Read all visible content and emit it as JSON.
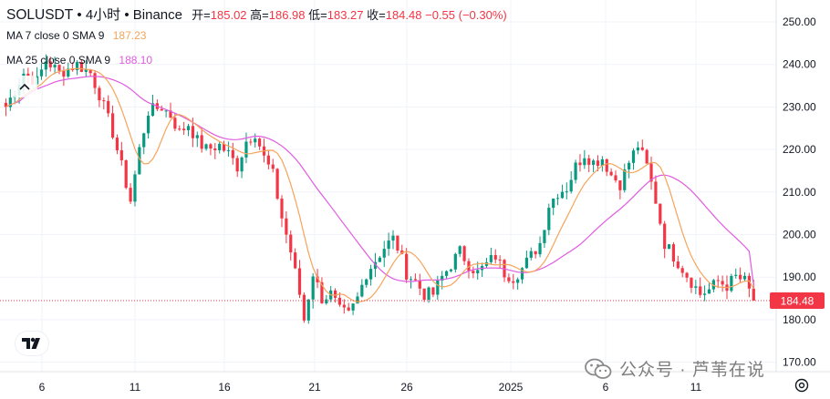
{
  "header": {
    "symbol": "SOLUSDT",
    "interval": "4小时",
    "exchange": "Binance",
    "dot": "•",
    "open_label": "开=",
    "open": "185.02",
    "high_label": "高=",
    "high": "186.98",
    "low_label": "低=",
    "low": "183.27",
    "close_label": "收=",
    "close": "184.48",
    "change": "−0.55 (−0.30%)"
  },
  "indicators": [
    {
      "label": "MA 7 close 0 SMA 9",
      "value": "187.23",
      "color": "#f5a45b"
    },
    {
      "label": "MA 25 close 0 SMA 9",
      "value": "188.10",
      "color": "#e05be0"
    }
  ],
  "price_badge": "184.48",
  "watermark": "公众号 · 芦苇在说",
  "colors": {
    "up": "#089981",
    "down": "#f23645",
    "grid": "#f0f3fa",
    "axis_text": "#131722",
    "badge": "#f23645"
  },
  "chart_data": {
    "type": "candlestick",
    "symbol": "SOLUSDT",
    "ylim": [
      170,
      255
    ],
    "y_ticks": [
      "250.00",
      "240.00",
      "230.00",
      "220.00",
      "210.00",
      "200.00",
      "190.00",
      "180.00",
      "170.00"
    ],
    "x_ticks": [
      "6",
      "11",
      "16",
      "21",
      "26",
      "2025",
      "6",
      "11"
    ],
    "last_price": 184.48,
    "grid": true,
    "close_path": [
      [
        0,
        230
      ],
      [
        4,
        238
      ],
      [
        7,
        236
      ],
      [
        9,
        241
      ],
      [
        12,
        238
      ],
      [
        16,
        240
      ],
      [
        19,
        238
      ],
      [
        21,
        233
      ],
      [
        24,
        224
      ],
      [
        26,
        216
      ],
      [
        28,
        208
      ],
      [
        30,
        220
      ],
      [
        32,
        229
      ],
      [
        35,
        230
      ],
      [
        37,
        228
      ],
      [
        39,
        224
      ],
      [
        41,
        226
      ],
      [
        43,
        222
      ],
      [
        45,
        220
      ],
      [
        48,
        221
      ],
      [
        50,
        219
      ],
      [
        52,
        216
      ],
      [
        54,
        222
      ],
      [
        56,
        224
      ],
      [
        58,
        218
      ],
      [
        60,
        214
      ],
      [
        62,
        204
      ],
      [
        64,
        196
      ],
      [
        66,
        186
      ],
      [
        67,
        180
      ],
      [
        69,
        191
      ],
      [
        71,
        185
      ],
      [
        73,
        186
      ],
      [
        75,
        182
      ],
      [
        77,
        181
      ],
      [
        79,
        185
      ],
      [
        81,
        191
      ],
      [
        83,
        194
      ],
      [
        85,
        197
      ],
      [
        87,
        199
      ],
      [
        88,
        197
      ],
      [
        90,
        191
      ],
      [
        92,
        189
      ],
      [
        94,
        186
      ],
      [
        96,
        186
      ],
      [
        98,
        190
      ],
      [
        100,
        193
      ],
      [
        102,
        196
      ],
      [
        104,
        193
      ],
      [
        106,
        191
      ],
      [
        108,
        193
      ],
      [
        110,
        195
      ],
      [
        112,
        191
      ],
      [
        114,
        190
      ],
      [
        116,
        192
      ],
      [
        118,
        195
      ],
      [
        120,
        198
      ],
      [
        122,
        207
      ],
      [
        124,
        210
      ],
      [
        126,
        211
      ],
      [
        128,
        216
      ],
      [
        130,
        219
      ],
      [
        132,
        217
      ],
      [
        134,
        218
      ],
      [
        136,
        214
      ],
      [
        138,
        212
      ],
      [
        140,
        217
      ],
      [
        142,
        221
      ],
      [
        144,
        216
      ],
      [
        146,
        208
      ],
      [
        148,
        198
      ],
      [
        150,
        195
      ],
      [
        152,
        192
      ],
      [
        154,
        189
      ],
      [
        156,
        186
      ],
      [
        158,
        187
      ],
      [
        160,
        189
      ],
      [
        162,
        188
      ],
      [
        164,
        190
      ],
      [
        166,
        189
      ],
      [
        168,
        184.48
      ]
    ],
    "series": [
      {
        "name": "MA 7 close 0 SMA 9",
        "last_value": 187.23
      },
      {
        "name": "MA 25 close 0 SMA 9",
        "last_value": 188.1
      }
    ]
  }
}
